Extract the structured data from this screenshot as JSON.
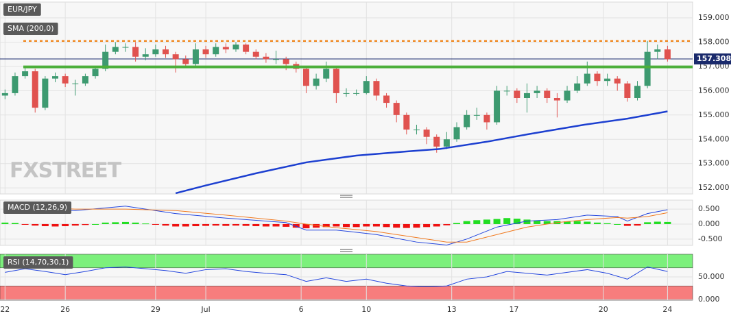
{
  "chart_data": [
    {
      "type": "candlestick",
      "title": "EUR/JPY",
      "watermark": "FXSTREET",
      "xlim": [
        -0.5,
        68.5
      ],
      "xticks": [
        {
          "value": 0,
          "label": "22"
        },
        {
          "value": 6,
          "label": "26"
        },
        {
          "value": 15,
          "label": "29"
        },
        {
          "value": 20,
          "label": "Jul"
        },
        {
          "value": 29.5,
          "label": "6"
        },
        {
          "value": 36,
          "label": "10"
        },
        {
          "value": 44.5,
          "label": "13"
        },
        {
          "value": 50.7,
          "label": "17"
        },
        {
          "value": 59.6,
          "label": "20"
        },
        {
          "value": 66,
          "label": "24"
        }
      ],
      "ylim": [
        151.75,
        159.65
      ],
      "yticks": [
        {
          "value": 152,
          "label": "152.000"
        },
        {
          "value": 153,
          "label": "153.000"
        },
        {
          "value": 154,
          "label": "154.000"
        },
        {
          "value": 155,
          "label": "155.000"
        },
        {
          "value": 156,
          "label": "156.000"
        },
        {
          "value": 157,
          "label": "157.000"
        },
        {
          "value": 158,
          "label": "158.000"
        },
        {
          "value": 159,
          "label": "159.000"
        }
      ],
      "grid": true,
      "up_color": "#3d9a70",
      "down_color": "#e0524f",
      "open": [
        155.8,
        155.9,
        156.6,
        156.8,
        155.3,
        156.5,
        156.6,
        156.3,
        156.3,
        156.6,
        156.9,
        157.6,
        157.8,
        157.8,
        157.4,
        157.5,
        157.7,
        157.5,
        157.3,
        157.1,
        157.7,
        157.5,
        157.8,
        157.7,
        157.9,
        157.6,
        157.4,
        157.3,
        157.3,
        157.1,
        156.9,
        156.2,
        156.5,
        156.9,
        155.9,
        155.9,
        155.9,
        156.4,
        155.8,
        155.5,
        155.0,
        154.4,
        154.4,
        154.1,
        153.7,
        154.0,
        154.5,
        155.0,
        155.0,
        154.7,
        156.0,
        156.0,
        155.7,
        155.9,
        156.0,
        155.7,
        155.6,
        156.0,
        156.3,
        156.7,
        156.4,
        156.5,
        156.3,
        155.7,
        156.2,
        157.6,
        157.7
      ],
      "high": [
        156.05,
        156.75,
        156.95,
        156.9,
        156.6,
        156.75,
        156.7,
        156.45,
        156.7,
        157.0,
        157.9,
        158.0,
        157.95,
        158.0,
        157.75,
        157.9,
        157.85,
        157.6,
        157.45,
        157.95,
        157.85,
        157.95,
        157.95,
        158.0,
        157.95,
        157.7,
        157.55,
        157.65,
        157.4,
        157.2,
        157.0,
        156.7,
        157.2,
        157.0,
        156.1,
        156.05,
        156.6,
        156.5,
        155.9,
        155.6,
        155.1,
        154.6,
        154.5,
        154.2,
        154.3,
        154.7,
        155.2,
        155.3,
        155.1,
        156.2,
        156.2,
        156.1,
        156.3,
        156.2,
        156.1,
        155.9,
        156.2,
        156.6,
        157.2,
        156.8,
        156.7,
        156.6,
        156.4,
        156.4,
        158.05,
        157.9,
        157.85
      ],
      "low": [
        155.65,
        155.8,
        156.5,
        155.1,
        155.2,
        156.35,
        156.15,
        155.8,
        156.2,
        156.5,
        156.8,
        157.5,
        157.6,
        157.2,
        157.25,
        157.4,
        157.35,
        156.75,
        156.95,
        157.0,
        157.35,
        157.4,
        157.55,
        157.6,
        157.5,
        157.3,
        157.15,
        157.1,
        156.85,
        156.75,
        155.9,
        156.05,
        156.35,
        155.5,
        155.75,
        155.8,
        155.85,
        155.6,
        155.3,
        154.7,
        154.2,
        154.2,
        153.8,
        153.45,
        153.6,
        153.9,
        154.4,
        154.8,
        154.4,
        154.6,
        155.8,
        155.5,
        155.1,
        155.7,
        155.5,
        154.9,
        155.5,
        155.9,
        156.2,
        156.2,
        156.2,
        156.0,
        155.55,
        155.6,
        156.1,
        157.3,
        157.2
      ],
      "close": [
        155.9,
        156.6,
        156.8,
        155.3,
        156.5,
        156.6,
        156.3,
        156.3,
        156.6,
        156.9,
        157.6,
        157.8,
        157.8,
        157.4,
        157.5,
        157.7,
        157.5,
        157.3,
        157.1,
        157.7,
        157.5,
        157.8,
        157.7,
        157.9,
        157.6,
        157.4,
        157.3,
        157.3,
        157.1,
        156.9,
        156.2,
        156.5,
        156.9,
        155.9,
        155.9,
        155.9,
        156.4,
        155.8,
        155.5,
        155.0,
        154.4,
        154.4,
        154.1,
        153.7,
        154.0,
        154.5,
        155.0,
        155.0,
        154.7,
        156.0,
        156.0,
        155.7,
        155.9,
        156.0,
        155.7,
        155.6,
        156.0,
        156.3,
        156.7,
        156.4,
        156.5,
        156.3,
        155.7,
        156.2,
        157.6,
        157.7,
        157.3
      ],
      "series": [
        {
          "name": "SMA (200,0)",
          "color": "#1c3fd0",
          "x": [
            17,
            20,
            25,
            30,
            35,
            40,
            43.3,
            48,
            52,
            57.7,
            62,
            66
          ],
          "values": [
            151.78,
            152.1,
            152.6,
            153.05,
            153.33,
            153.5,
            153.6,
            153.9,
            154.2,
            154.6,
            154.85,
            155.15
          ]
        }
      ],
      "resistance": 158.05,
      "resistance_color": "#f08a24",
      "support": 156.98,
      "support_color": "#4caf3a",
      "last_price": 157.308,
      "last_price_color": "#1a2a6c"
    },
    {
      "type": "macd",
      "title": "MACD (12,26,9)",
      "ylim": [
        -0.71,
        0.8
      ],
      "yticks": [
        {
          "value": -0.5,
          "label": "-0.500"
        },
        {
          "value": 0,
          "label": "0.000"
        },
        {
          "value": 0.5,
          "label": "0.500"
        }
      ],
      "up_color": "#22dd22",
      "down_color": "#ee1111",
      "histogram": [
        0.05,
        0.04,
        -0.02,
        -0.05,
        -0.07,
        -0.08,
        -0.07,
        -0.05,
        -0.03,
        0.0,
        0.05,
        0.06,
        0.07,
        0.05,
        0.02,
        -0.02,
        -0.05,
        -0.08,
        -0.08,
        -0.07,
        -0.06,
        -0.05,
        -0.06,
        -0.05,
        -0.06,
        -0.07,
        -0.08,
        -0.08,
        -0.09,
        -0.12,
        -0.14,
        -0.12,
        -0.1,
        -0.08,
        -0.1,
        -0.1,
        -0.08,
        -0.08,
        -0.1,
        -0.12,
        -0.13,
        -0.12,
        -0.1,
        -0.08,
        -0.04,
        0.04,
        0.1,
        0.13,
        0.15,
        0.17,
        0.2,
        0.18,
        0.15,
        0.12,
        0.1,
        0.1,
        0.09,
        0.1,
        0.08,
        0.05,
        0.03,
        0.0,
        -0.06,
        -0.05,
        0.06,
        0.08,
        0.07
      ],
      "series": [
        {
          "color": "#2244dd",
          "x": [
            0,
            7,
            12,
            17,
            22,
            28,
            30,
            33,
            37,
            41,
            44,
            46,
            49,
            52,
            55,
            58,
            61,
            62,
            64,
            66
          ],
          "values": [
            0.55,
            0.45,
            0.6,
            0.35,
            0.2,
            0.05,
            -0.2,
            -0.2,
            -0.35,
            -0.6,
            -0.7,
            -0.5,
            -0.1,
            0.1,
            0.15,
            0.3,
            0.25,
            0.1,
            0.35,
            0.48
          ]
        },
        {
          "color": "#f07a20",
          "x": [
            0,
            7,
            12,
            17,
            22,
            28,
            30,
            33,
            37,
            41,
            44,
            46,
            49,
            52,
            55,
            58,
            61,
            62,
            64,
            66
          ],
          "values": [
            0.6,
            0.5,
            0.5,
            0.45,
            0.3,
            0.1,
            0.0,
            -0.12,
            -0.25,
            -0.45,
            -0.6,
            -0.6,
            -0.35,
            -0.1,
            0.05,
            0.15,
            0.22,
            0.2,
            0.25,
            0.38
          ]
        }
      ]
    },
    {
      "type": "rsi",
      "title": "RSI (14,70,30,1)",
      "ylim": [
        -1.5,
        100
      ],
      "yticks": [
        {
          "value": 0,
          "label": "0.000"
        },
        {
          "value": 50,
          "label": "50.000"
        }
      ],
      "overbought": 70,
      "oversold": 30,
      "overbought_color": "#7cf07c",
      "oversold_color": "#f77d7d",
      "series": [
        {
          "color": "#2244dd",
          "x": [
            0,
            2,
            4,
            6,
            8,
            10,
            12,
            14,
            16,
            18,
            20,
            22,
            24,
            26,
            28,
            30,
            32,
            34,
            36,
            38,
            40,
            42,
            44,
            46,
            48,
            50,
            52,
            54,
            56,
            58,
            60,
            62,
            64,
            66
          ],
          "values": [
            60,
            68,
            62,
            55,
            62,
            70,
            72,
            68,
            64,
            58,
            66,
            68,
            62,
            58,
            55,
            40,
            48,
            40,
            45,
            36,
            30,
            28,
            30,
            45,
            50,
            62,
            58,
            54,
            60,
            66,
            58,
            45,
            72,
            62
          ]
        }
      ]
    }
  ]
}
